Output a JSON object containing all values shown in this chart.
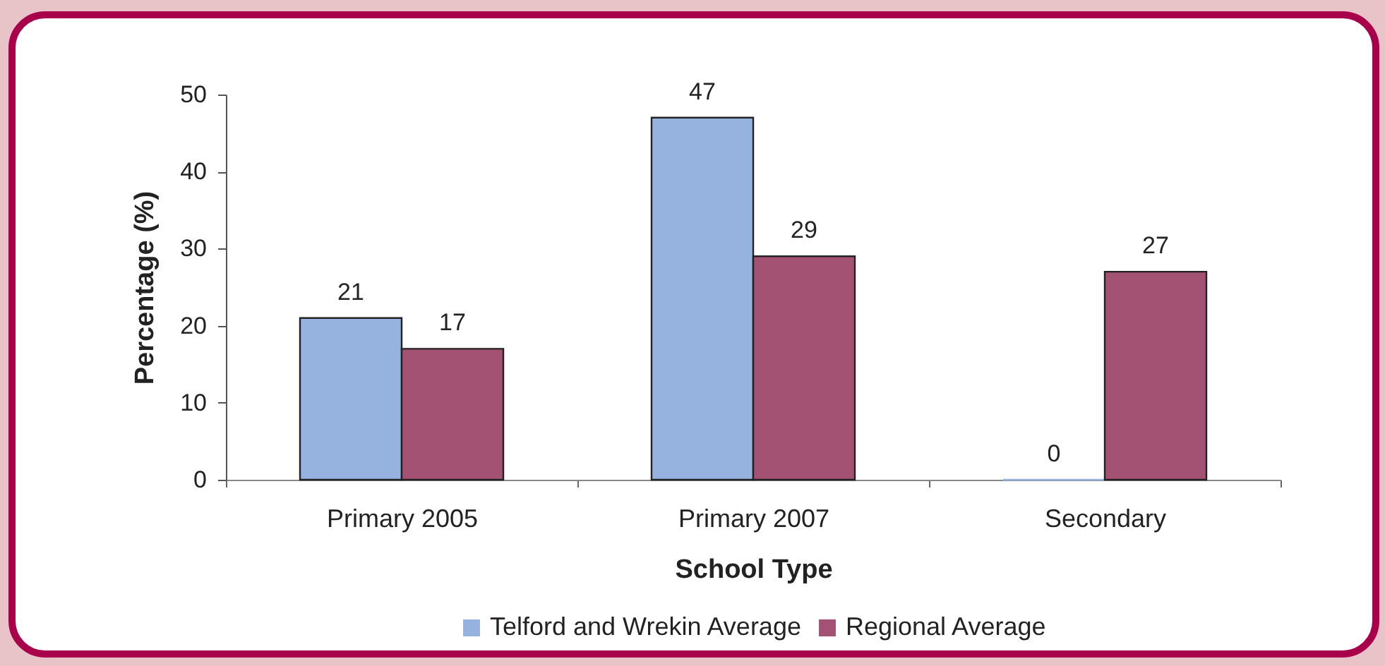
{
  "chart_data": {
    "type": "bar",
    "xlabel": "School Type",
    "ylabel": "Percentage (%)",
    "categories": [
      "Primary 2005",
      "Primary 2007",
      "Secondary"
    ],
    "series": [
      {
        "name": "Telford and Wrekin Average",
        "color": "#95b3de",
        "values": [
          21,
          47,
          0
        ]
      },
      {
        "name": "Regional Average",
        "color": "#a35274",
        "values": [
          17,
          29,
          27
        ]
      }
    ],
    "ylim": [
      0,
      50
    ],
    "yticks": [
      0,
      10,
      20,
      30,
      40,
      50
    ],
    "grid": false,
    "legend": "bottom",
    "data_labels": true
  }
}
